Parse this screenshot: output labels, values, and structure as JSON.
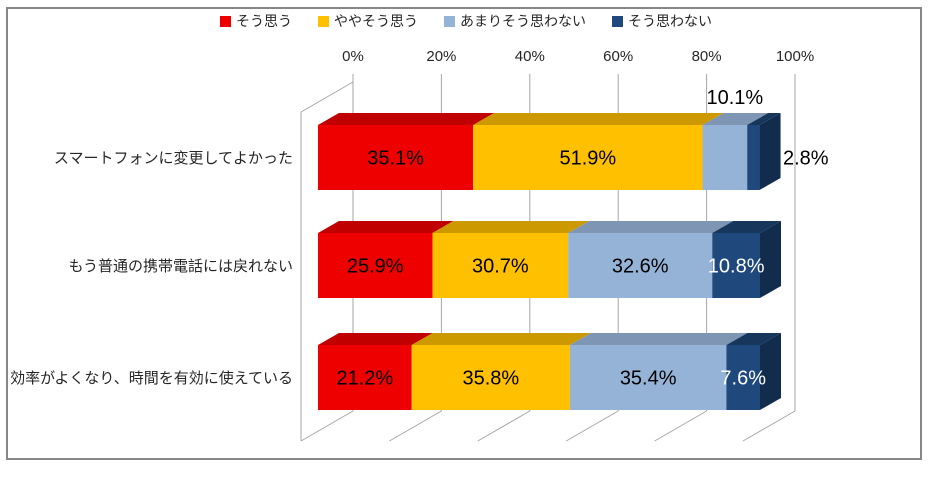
{
  "chart_data": {
    "type": "bar",
    "variant": "3d-horizontal-stacked",
    "title": "",
    "legend_position": "top",
    "grid": true,
    "categories": [
      "スマートフォンに変更してよかった",
      "もう普通の携帯電話には戻れない",
      "効率がよくなり、時間を有効に使えている"
    ],
    "series": [
      {
        "name": "そう思う",
        "values": [
          35.1,
          25.9,
          21.2
        ],
        "color": {
          "front": "#EE0000",
          "top": "#C00000",
          "side": "#A00000"
        },
        "label_color": "#000000"
      },
      {
        "name": "ややそう思う",
        "values": [
          51.9,
          30.7,
          35.8
        ],
        "color": {
          "front": "#FFC000",
          "top": "#CC9A00",
          "side": "#B08500"
        },
        "label_color": "#000000"
      },
      {
        "name": "あまりそう思わない",
        "values": [
          10.1,
          32.6,
          35.4
        ],
        "color": {
          "front": "#95B3D7",
          "top": "#7E96B4",
          "side": "#6C83A0"
        },
        "label_color": "#000000"
      },
      {
        "name": "そう思わない",
        "values": [
          2.8,
          10.8,
          7.6
        ],
        "color": {
          "front": "#1F497D",
          "top": "#16365C",
          "side": "#122C4E"
        },
        "label_color": "#FFFFFF"
      }
    ],
    "x_axis": {
      "ticks": [
        "0%",
        "20%",
        "40%",
        "60%",
        "80%",
        "100%"
      ],
      "min": 0,
      "max": 100,
      "position": "top"
    },
    "label_suffix": "%",
    "label_overrides": [
      {
        "category": 0,
        "series": 2,
        "position": "above"
      },
      {
        "category": 0,
        "series": 3,
        "position": "right"
      }
    ],
    "colors": {
      "gridline": "#A6A6A6",
      "text": "#262626",
      "data_label": "#000000",
      "frame_border": "#878787"
    }
  }
}
